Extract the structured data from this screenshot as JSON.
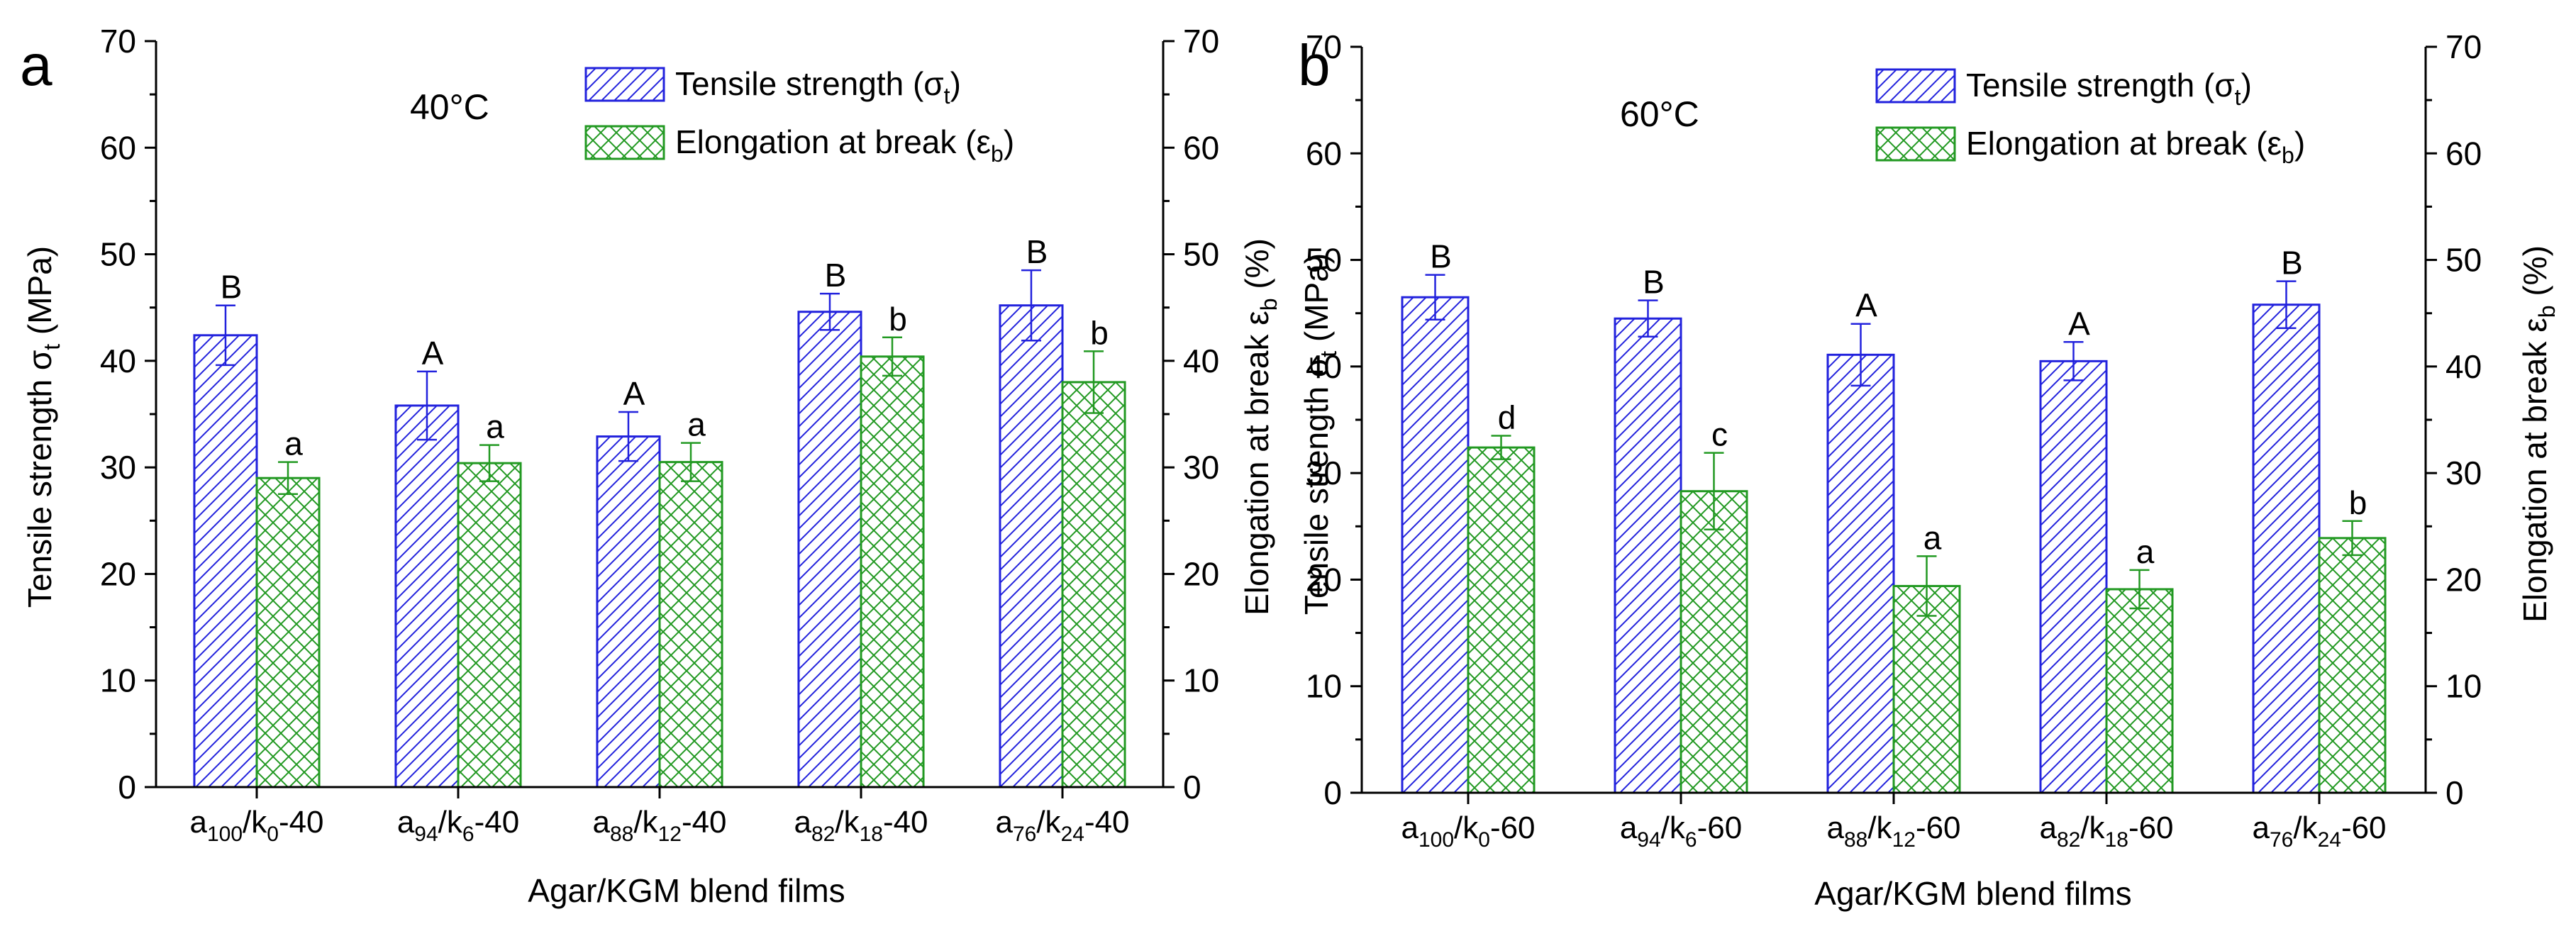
{
  "panels": [
    {
      "panel_label": "a",
      "temperature": "40°C",
      "chart_data": {
        "type": "bar",
        "title": "",
        "categories": [
          "a100/k0-40",
          "a94/k6-40",
          "a88/k12-40",
          "a82/k18-40",
          "a76/k24-40"
        ],
        "category_parts": [
          {
            "a": "100",
            "k": "0",
            "t": "-40"
          },
          {
            "a": "94",
            "k": "6",
            "t": "-40"
          },
          {
            "a": "88",
            "k": "12",
            "t": "-40"
          },
          {
            "a": "82",
            "k": "18",
            "t": "-40"
          },
          {
            "a": "76",
            "k": "24",
            "t": "-40"
          }
        ],
        "series": [
          {
            "name": "Tensile strength (σt)",
            "axis": "left",
            "color": "#2222dd",
            "pattern": "hatch",
            "values": [
              42.4,
              35.8,
              32.9,
              44.6,
              45.2
            ],
            "errors": [
              2.8,
              3.2,
              2.3,
              1.7,
              3.3
            ],
            "letters": [
              "B",
              "A",
              "A",
              "B",
              "B"
            ]
          },
          {
            "name": "Elongation at break (εb)",
            "axis": "right",
            "color": "#229922",
            "pattern": "crosshatch",
            "values": [
              29.0,
              30.4,
              30.5,
              40.4,
              38.0
            ],
            "errors": [
              1.5,
              1.7,
              1.8,
              1.8,
              2.9
            ],
            "letters": [
              "a",
              "a",
              "a",
              "b",
              "b"
            ]
          }
        ],
        "xlabel": "Agar/KGM blend films",
        "ylabel_left": "Tensile strength σt (MPa)",
        "ylabel_right": "Elongation at break εb (%)",
        "ylim": [
          0,
          70
        ],
        "yticks": [
          0,
          10,
          20,
          30,
          40,
          50,
          60,
          70
        ],
        "grid": false,
        "legend_position": "top-right"
      }
    },
    {
      "panel_label": "b",
      "temperature": "60°C",
      "chart_data": {
        "type": "bar",
        "title": "",
        "categories": [
          "a100/k0-60",
          "a94/k6-60",
          "a88/k12-60",
          "a82/k18-60",
          "a76/k24-60"
        ],
        "category_parts": [
          {
            "a": "100",
            "k": "0",
            "t": "-60"
          },
          {
            "a": "94",
            "k": "6",
            "t": "-60"
          },
          {
            "a": "88",
            "k": "12",
            "t": "-60"
          },
          {
            "a": "82",
            "k": "18",
            "t": "-60"
          },
          {
            "a": "76",
            "k": "24",
            "t": "-60"
          }
        ],
        "series": [
          {
            "name": "Tensile strength (σt)",
            "axis": "left",
            "color": "#2222dd",
            "pattern": "hatch",
            "values": [
              46.5,
              44.5,
              41.1,
              40.5,
              45.8
            ],
            "errors": [
              2.1,
              1.7,
              2.9,
              1.8,
              2.2
            ],
            "letters": [
              "B",
              "B",
              "A",
              "A",
              "B"
            ]
          },
          {
            "name": "Elongation at break (εb)",
            "axis": "right",
            "color": "#229922",
            "pattern": "crosshatch",
            "values": [
              32.4,
              28.3,
              19.4,
              19.1,
              23.9
            ],
            "errors": [
              1.1,
              3.6,
              2.8,
              1.8,
              1.6
            ],
            "letters": [
              "d",
              "c",
              "a",
              "a",
              "b"
            ]
          }
        ],
        "xlabel": "Agar/KGM blend films",
        "ylabel_left": "Tensile strength σt (MPa)",
        "ylabel_right": "Elongation at break εb (%)",
        "ylim": [
          0,
          70
        ],
        "yticks": [
          0,
          10,
          20,
          30,
          40,
          50,
          60,
          70
        ],
        "grid": false,
        "legend_position": "top-right"
      }
    }
  ],
  "legend": {
    "tensile_name": "Tensile strength (",
    "tensile_symbol": "σ",
    "tensile_sub": "t",
    "elong_name": "Elongation at break (",
    "elong_symbol": "ε",
    "elong_sub": "b",
    "close": ")"
  },
  "axis_text": {
    "left_main": "Tensile strength σ",
    "left_sub": "t",
    "left_unit": " (MPa)",
    "right_main": "Elongation at break ε",
    "right_sub": "b",
    "right_unit": " (%)"
  },
  "colors": {
    "tensile": "#2222dd",
    "elongation": "#229922",
    "axis": "#000000"
  }
}
